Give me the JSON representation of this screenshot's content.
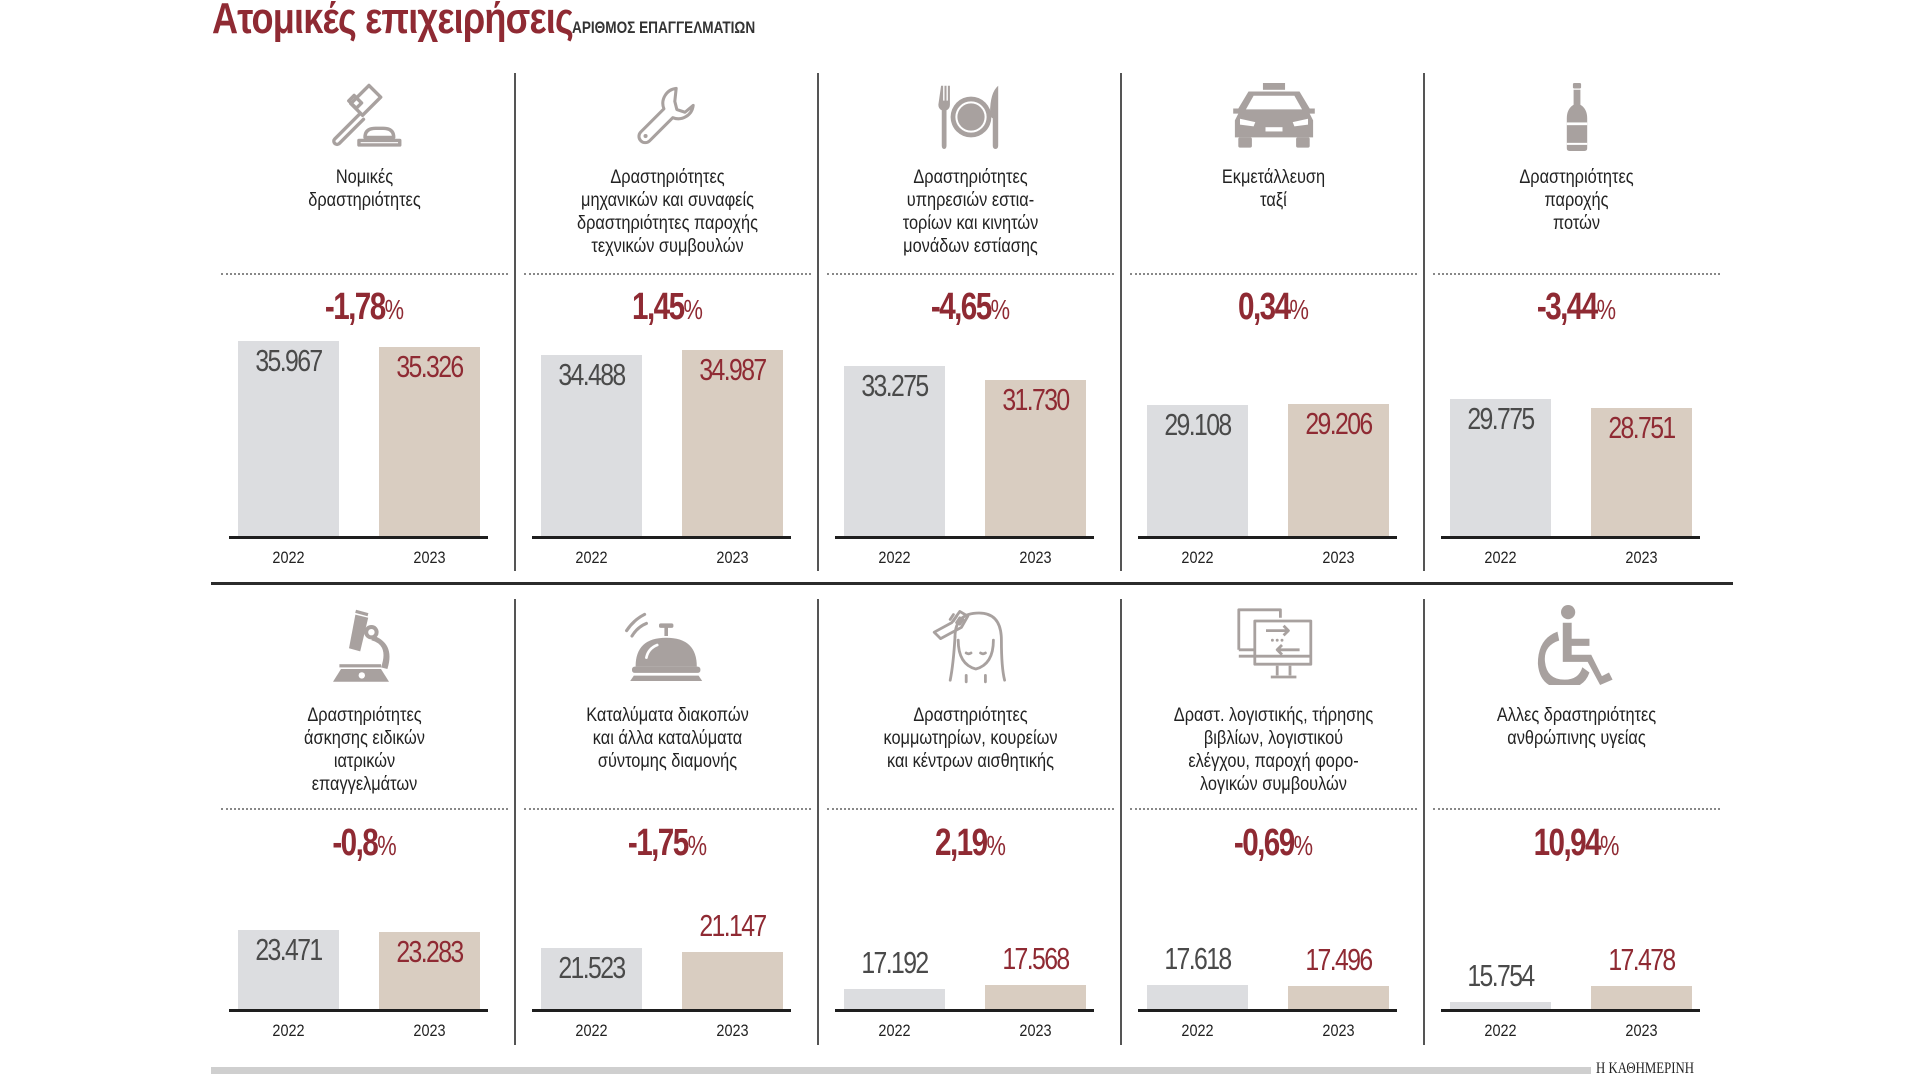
{
  "title": "Ατομικές επιχειρήσεις",
  "subtitle": "ΑΡΙΘΜΟΣ ΕΠΑΓΓΕΛΜΑΤΙΩΝ",
  "source": "Η ΚΑΘΗΜΕΡΙΝΗ",
  "colors": {
    "accent": "#8f2a33",
    "bar_2022": "#dcdde0",
    "bar_2023": "#d9cdc1",
    "icon": "#a8a19f"
  },
  "chart_data": {
    "type": "bar",
    "title": "Ατομικές επιχειρήσεις",
    "subtitle": "ΑΡΙΘΜΟΣ ΕΠΑΓΓΕΛΜΑΤΙΩΝ",
    "xlabel": "",
    "ylabel": "Αριθμός επαγγελματιών",
    "categories": [
      "2022",
      "2023"
    ],
    "ylim": [
      15000,
      37000
    ],
    "grid": false,
    "legend": "none",
    "panels": [
      {
        "icon": "gavel-icon",
        "label": "Νομικές δραστηριότητες",
        "change": "-1,78",
        "values": [
          35967,
          35326
        ],
        "display": [
          "35.967",
          "35.326"
        ]
      },
      {
        "icon": "wrench-icon",
        "label": "Δραστηριότητες μηχανικών και συναφείς δραστηριότητες παροχής τεχνικών συμβουλών",
        "change": "1,45",
        "values": [
          34488,
          34987
        ],
        "display": [
          "34.488",
          "34.987"
        ]
      },
      {
        "icon": "plate-cutlery-icon",
        "label": "Δραστηριότητες υπηρεσιών εστια- τορίων και κινητών μονάδων εστίασης",
        "change": "-4,65",
        "values": [
          33275,
          31730
        ],
        "display": [
          "33.275",
          "31.730"
        ]
      },
      {
        "icon": "taxi-icon",
        "label": "Εκμετάλλευση ταξί",
        "change": "0,34",
        "values": [
          29108,
          29206
        ],
        "display": [
          "29.108",
          "29.206"
        ]
      },
      {
        "icon": "bottle-icon",
        "label": "Δραστηριότητες παροχής ποτών",
        "change": "-3,44",
        "values": [
          29775,
          28751
        ],
        "display": [
          "29.775",
          "28.751"
        ]
      },
      {
        "icon": "microscope-icon",
        "label": "Δραστηριότητες άσκησης ειδικών ιατρικών επαγγελμάτων",
        "change": "-0,8",
        "values": [
          23471,
          23283
        ],
        "display": [
          "23.471",
          "23.283"
        ]
      },
      {
        "icon": "service-bell-icon",
        "label": "Καταλύματα διακοπών και άλλα καταλύματα σύντομης διαμονής",
        "change": "-1,75",
        "values": [
          21523,
          21147
        ],
        "display": [
          "21.523",
          "21.147"
        ]
      },
      {
        "icon": "hairdresser-icon",
        "label": "Δραστηριότητες κομμωτηρίων, κουρείων και κέντρων αισθητικής",
        "change": "2,19",
        "values": [
          17192,
          17568
        ],
        "display": [
          "17.192",
          "17.568"
        ]
      },
      {
        "icon": "accounting-screens-icon",
        "label": "Δραστ. λογιστικής, τήρησης βιβλίων, λογιστικού ελέγχου, παροχή φορο- λογικών συμβουλών",
        "change": "-0,69",
        "values": [
          17618,
          17496
        ],
        "display": [
          "17.618",
          "17.496"
        ]
      },
      {
        "icon": "wheelchair-icon",
        "label": "Αλλες δραστηριότητες ανθρώπινης υγείας",
        "change": "10,94",
        "values": [
          15754,
          17478
        ],
        "display": [
          "15.754",
          "17.478"
        ]
      }
    ],
    "label_lines": [
      [
        "Νομικές",
        "δραστηριότητες"
      ],
      [
        "Δραστηριότητες",
        "μηχανικών και συναφείς",
        "δραστηριότητες παροχής",
        "τεχνικών συμβουλών"
      ],
      [
        "Δραστηριότητες",
        "υπηρεσιών εστια-",
        "τορίων και κινητών",
        "μονάδων εστίασης"
      ],
      [
        "Εκμετάλλευση",
        "ταξί"
      ],
      [
        "Δραστηριότητες",
        "παροχής",
        "ποτών"
      ],
      [
        "Δραστηριότητες",
        "άσκησης ειδικών",
        "ιατρικών",
        "επαγγελμάτων"
      ],
      [
        "Καταλύματα διακοπών",
        "και άλλα καταλύματα",
        "σύντομης διαμονής"
      ],
      [
        "Δραστηριότητες",
        "κομμωτηρίων, κουρείων",
        "και κέντρων αισθητικής"
      ],
      [
        "Δραστ. λογιστικής, τήρησης",
        "βιβλίων, λογιστικού",
        "ελέγχου, παροχή φορο-",
        "λογικών συμβουλών"
      ],
      [
        "Αλλες δραστηριότητες",
        "ανθρώπινης υγείας"
      ]
    ],
    "percent_symbol": "%"
  }
}
